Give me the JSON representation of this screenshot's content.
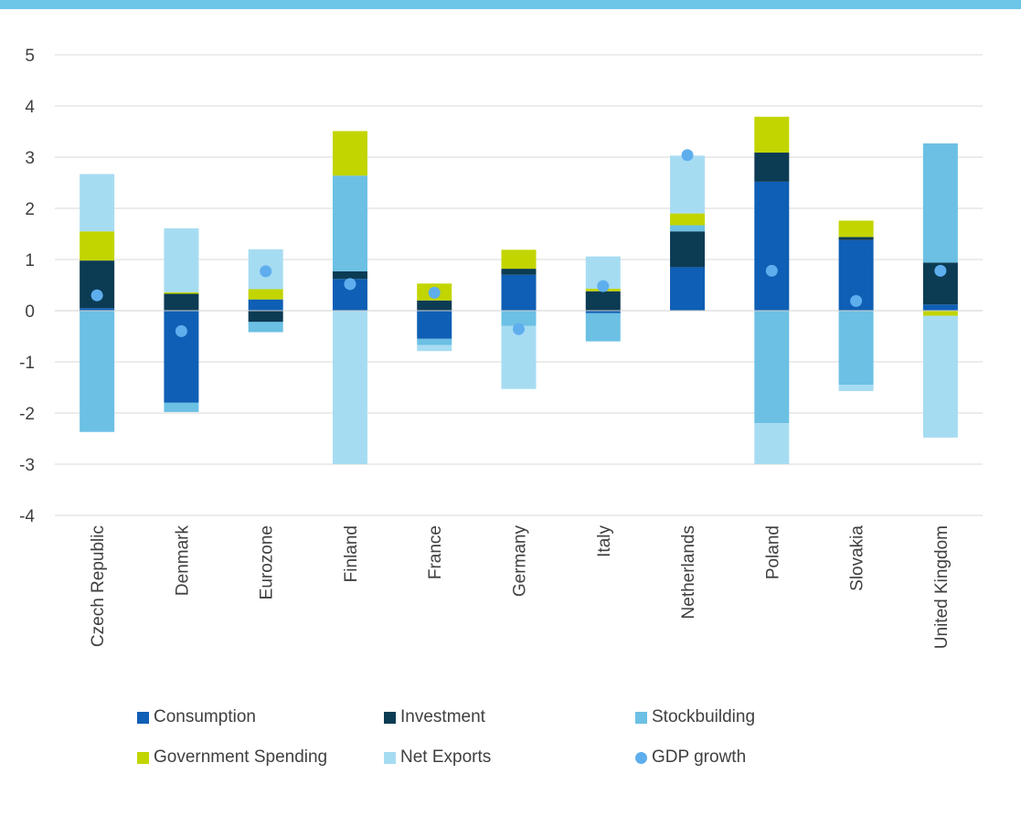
{
  "chart_data": {
    "type": "bar",
    "stacked": true,
    "title": "",
    "xlabel": "",
    "ylabel": "",
    "ylim": [
      -4,
      5
    ],
    "yticks": [
      "5",
      "4",
      "3",
      "2",
      "1",
      "0",
      "-1",
      "-2",
      "-3",
      "-4"
    ],
    "ytick_values": [
      5,
      4,
      3,
      2,
      1,
      0,
      -1,
      -2,
      -3,
      -4
    ],
    "grid": true,
    "legend_position": "bottom",
    "categories": [
      "Czech Republic",
      "Denmark",
      "Eurozone",
      "Finland",
      "France",
      "Germany",
      "Italy",
      "Netherlands",
      "Poland",
      "Slovakia",
      "United Kingdom"
    ],
    "series": [
      {
        "name": "Consumption",
        "color": "#0e5fb5",
        "values": [
          0.05,
          -1.8,
          0.22,
          0.62,
          -0.55,
          0.7,
          -0.05,
          0.85,
          2.52,
          1.38,
          0.12
        ]
      },
      {
        "name": "Investment",
        "color": "#0c3b54",
        "values": [
          0.93,
          0.33,
          -0.22,
          0.15,
          0.2,
          0.12,
          0.38,
          0.7,
          0.57,
          0.06,
          0.82
        ]
      },
      {
        "name": "Stockbuilding",
        "color": "#6bc0e4",
        "values": [
          -2.37,
          -0.18,
          -0.2,
          1.87,
          -0.12,
          -0.3,
          -0.55,
          0.12,
          -2.2,
          -1.45,
          2.33
        ]
      },
      {
        "name": "Government Spending",
        "color": "#c2d500",
        "values": [
          0.57,
          0.03,
          0.2,
          0.87,
          0.33,
          0.37,
          0.05,
          0.23,
          0.7,
          0.32,
          -0.1
        ]
      },
      {
        "name": "Net Exports",
        "color": "#a6dcf2",
        "values": [
          1.12,
          1.25,
          0.78,
          -3.0,
          -0.12,
          -1.23,
          0.63,
          1.13,
          -0.8,
          -0.12,
          -2.38
        ]
      }
    ],
    "points": {
      "name": "GDP growth",
      "color": "#5eaeee",
      "values": [
        0.3,
        -0.4,
        0.77,
        0.52,
        0.35,
        -0.36,
        0.48,
        3.04,
        0.78,
        0.19,
        0.78
      ]
    }
  },
  "legend": [
    {
      "label": "Consumption",
      "color": "#0e5fb5",
      "marker": "square"
    },
    {
      "label": "Investment",
      "color": "#0c3b54",
      "marker": "square"
    },
    {
      "label": "Stockbuilding",
      "color": "#6bc0e4",
      "marker": "square"
    },
    {
      "label": "Government Spending",
      "color": "#c2d500",
      "marker": "square"
    },
    {
      "label": "Net Exports",
      "color": "#a6dcf2",
      "marker": "square"
    },
    {
      "label": "GDP growth",
      "color": "#5eaeee",
      "marker": "circle"
    }
  ],
  "colors": {
    "top_band": "#6dc6e8",
    "gridline": "#d9d9d9",
    "text": "#404040"
  }
}
